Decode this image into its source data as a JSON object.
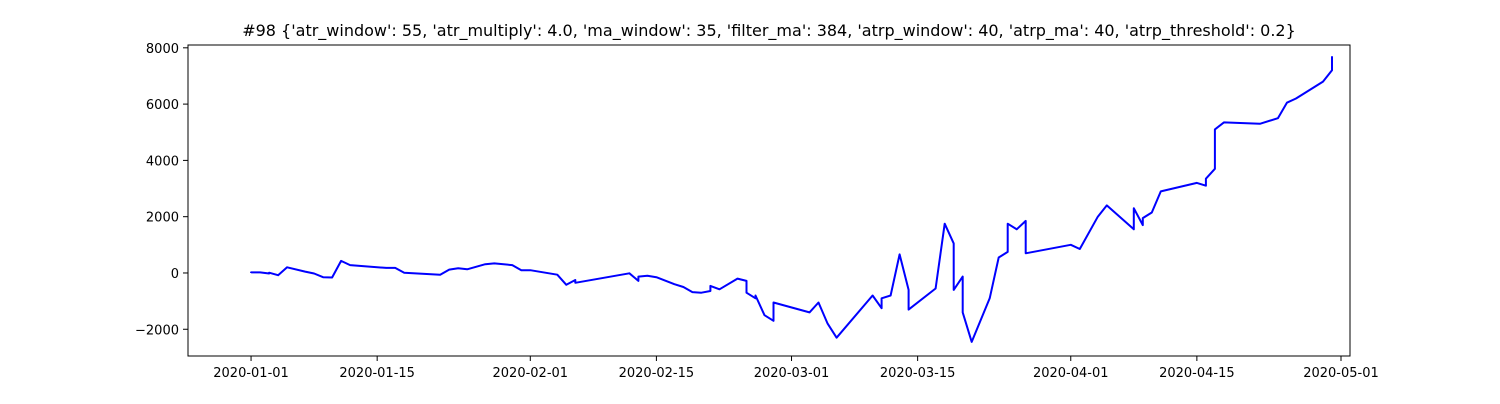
{
  "chart_data": {
    "type": "line",
    "title": "#98 {'atr_window': 55, 'atr_multiply': 4.0, 'ma_window': 35, 'filter_ma': 384, 'atrp_window': 40, 'atrp_ma': 40, 'atrp_threshold': 0.2}",
    "xlabel": "",
    "ylabel": "",
    "x_axis_type": "date",
    "xlim": [
      "2019-12-25",
      "2020-05-02"
    ],
    "ylim": [
      -2950,
      8100
    ],
    "x_ticks": [
      "2020-01-01",
      "2020-01-15",
      "2020-02-01",
      "2020-02-15",
      "2020-03-01",
      "2020-03-15",
      "2020-04-01",
      "2020-04-15",
      "2020-05-01"
    ],
    "y_ticks": [
      -2000,
      0,
      2000,
      4000,
      6000,
      8000
    ],
    "y_tick_labels": [
      "−2000",
      "0",
      "2000",
      "4000",
      "6000",
      "8000"
    ],
    "grid": false,
    "legend": "none",
    "line_color": "#0000ff",
    "series": [
      {
        "x": [
          "2020-01-01",
          "2020-01-01",
          "2020-01-02",
          "2020-01-03",
          "2020-01-03",
          "2020-01-04",
          "2020-01-05",
          "2020-01-07",
          "2020-01-08",
          "2020-01-09",
          "2020-01-10",
          "2020-01-11",
          "2020-01-12",
          "2020-01-16",
          "2020-01-17",
          "2020-01-18",
          "2020-01-22",
          "2020-01-23",
          "2020-01-24",
          "2020-01-25",
          "2020-01-27",
          "2020-01-28",
          "2020-01-30",
          "2020-01-31",
          "2020-02-01",
          "2020-02-04",
          "2020-02-05",
          "2020-02-06",
          "2020-02-06",
          "2020-02-12",
          "2020-02-13",
          "2020-02-13",
          "2020-02-14",
          "2020-02-15",
          "2020-02-17",
          "2020-02-18",
          "2020-02-19",
          "2020-02-20",
          "2020-02-21",
          "2020-02-21",
          "2020-02-22",
          "2020-02-24",
          "2020-02-25",
          "2020-02-25",
          "2020-02-26",
          "2020-02-26",
          "2020-02-27",
          "2020-02-28",
          "2020-02-28",
          "2020-03-03",
          "2020-03-04",
          "2020-03-05",
          "2020-03-06",
          "2020-03-10",
          "2020-03-11",
          "2020-03-11",
          "2020-03-12",
          "2020-03-13",
          "2020-03-14",
          "2020-03-14",
          "2020-03-17",
          "2020-03-18",
          "2020-03-19",
          "2020-03-19",
          "2020-03-20",
          "2020-03-20",
          "2020-03-21",
          "2020-03-23",
          "2020-03-24",
          "2020-03-25",
          "2020-03-25",
          "2020-03-26",
          "2020-03-27",
          "2020-03-27",
          "2020-04-01",
          "2020-04-02",
          "2020-04-04",
          "2020-04-05",
          "2020-04-08",
          "2020-04-08",
          "2020-04-09",
          "2020-04-09",
          "2020-04-10",
          "2020-04-11",
          "2020-04-15",
          "2020-04-16",
          "2020-04-16",
          "2020-04-17",
          "2020-04-17",
          "2020-04-17",
          "2020-04-18",
          "2020-04-22",
          "2020-04-24",
          "2020-04-25",
          "2020-04-26",
          "2020-04-29",
          "2020-04-30",
          "2020-04-30"
        ],
        "y": [
          0,
          20,
          20,
          -20,
          10,
          -80,
          200,
          50,
          -20,
          -150,
          -160,
          430,
          280,
          180,
          180,
          10,
          -60,
          120,
          170,
          130,
          310,
          340,
          280,
          100,
          100,
          -60,
          -420,
          -250,
          -350,
          -10,
          -280,
          -130,
          -100,
          -150,
          -400,
          -500,
          -680,
          -700,
          -640,
          -460,
          -580,
          -200,
          -280,
          -700,
          -900,
          -800,
          -1500,
          -1700,
          -1050,
          -1400,
          -1050,
          -1800,
          -2300,
          -800,
          -1250,
          -900,
          -800,
          660,
          -600,
          -1300,
          -550,
          1750,
          1050,
          -600,
          -130,
          -1400,
          -2450,
          -900,
          550,
          750,
          1750,
          1550,
          1850,
          700,
          1000,
          850,
          2000,
          2400,
          1550,
          2300,
          1700,
          1950,
          2150,
          2900,
          3200,
          3100,
          3350,
          3700,
          4100,
          5100,
          5350,
          5300,
          5500,
          6050,
          6200,
          6800,
          7200,
          7700
        ]
      }
    ]
  }
}
